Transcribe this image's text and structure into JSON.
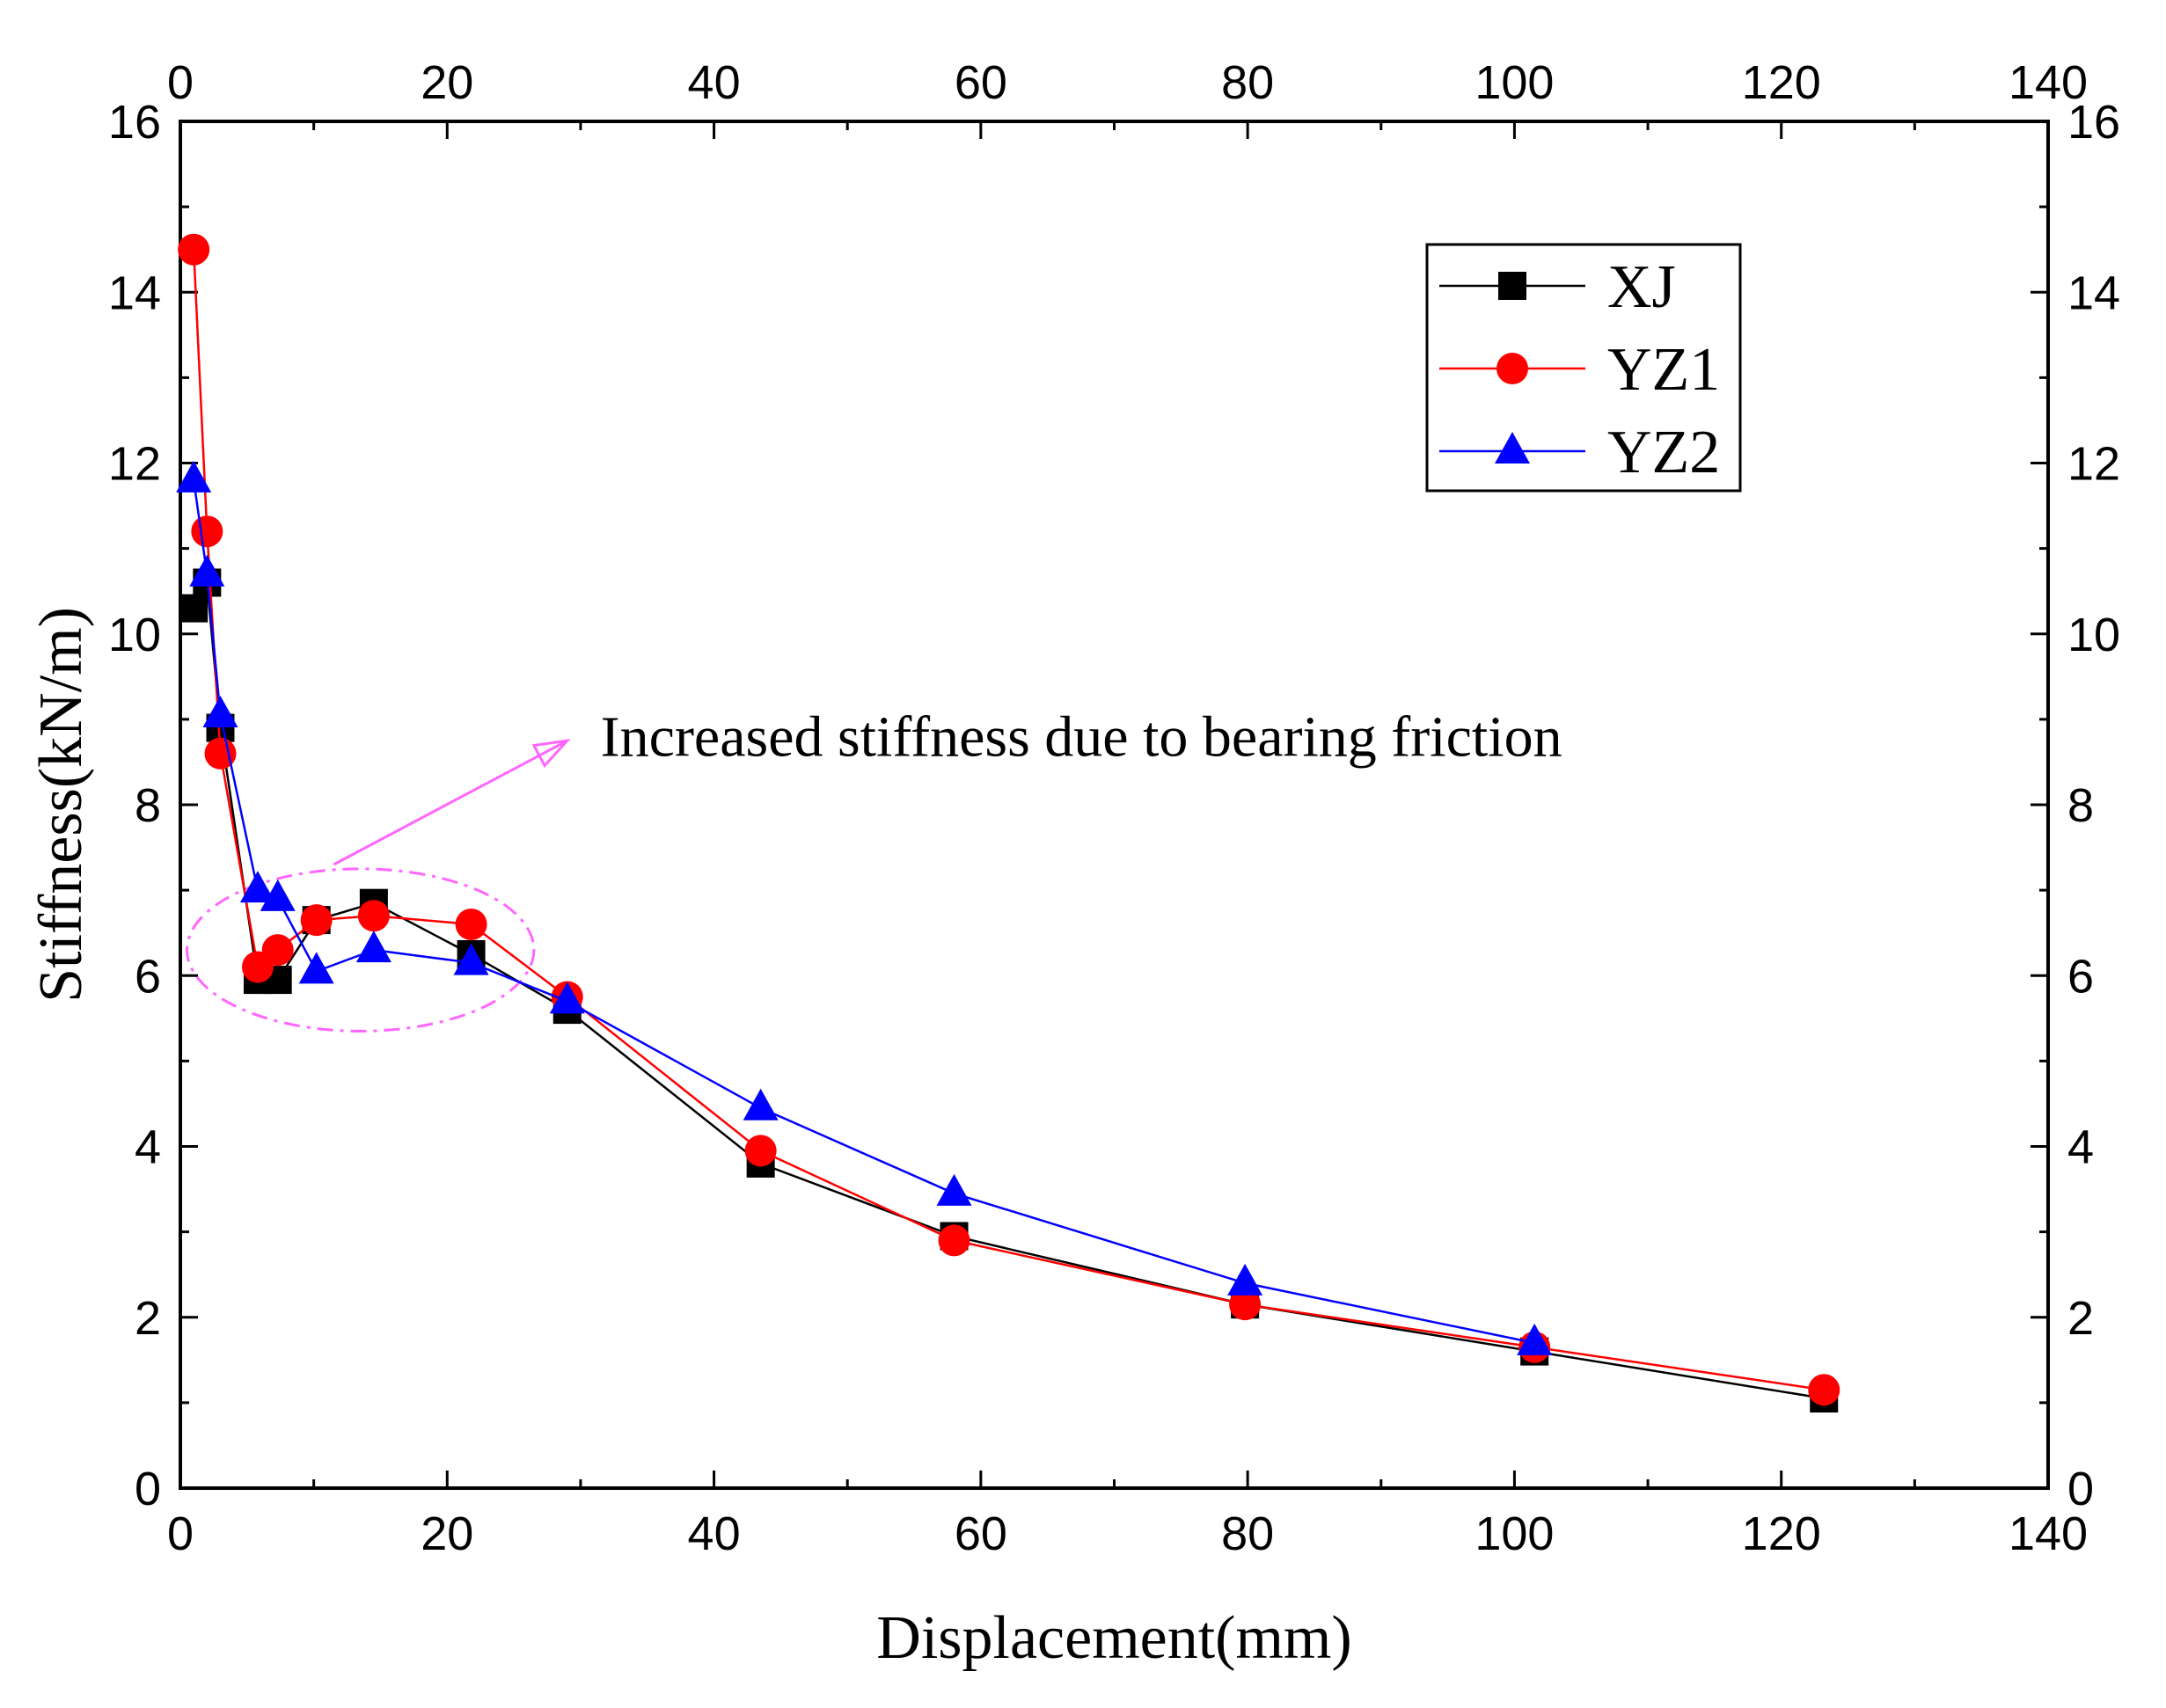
{
  "chart_data": {
    "type": "line",
    "title": "",
    "xlabel": "Displacement(mm)",
    "ylabel": "Stiffness(kN/m)",
    "xlim": [
      0,
      140
    ],
    "ylim": [
      0,
      16
    ],
    "x_ticks": [
      0,
      20,
      40,
      60,
      80,
      100,
      120,
      140
    ],
    "y_ticks": [
      0,
      2,
      4,
      6,
      8,
      10,
      12,
      14,
      16
    ],
    "grid": false,
    "legend_position": "top-right",
    "series": [
      {
        "name": "XJ",
        "color": "#000000",
        "marker": "square",
        "x": [
          1.0,
          2.0,
          3.0,
          5.8,
          7.3,
          10.2,
          14.5,
          21.8,
          29.0,
          43.5,
          58.0,
          79.8,
          101.5,
          123.2
        ],
        "y": [
          10.3,
          10.6,
          8.9,
          5.95,
          5.95,
          6.65,
          6.85,
          6.25,
          5.6,
          3.8,
          2.95,
          2.15,
          1.6,
          1.05
        ]
      },
      {
        "name": "YZ1",
        "color": "#ff0000",
        "marker": "circle",
        "x": [
          1.0,
          2.0,
          3.0,
          5.8,
          7.3,
          10.2,
          14.5,
          21.8,
          29.0,
          43.5,
          58.0,
          79.8,
          101.5,
          123.2
        ],
        "y": [
          14.5,
          11.2,
          8.6,
          6.1,
          6.3,
          6.65,
          6.7,
          6.6,
          5.75,
          3.95,
          2.9,
          2.15,
          1.65,
          1.15
        ]
      },
      {
        "name": "YZ2",
        "color": "#0000ff",
        "marker": "triangle",
        "x": [
          1.0,
          2.0,
          3.0,
          5.8,
          7.3,
          10.2,
          14.5,
          21.8,
          29.0,
          43.5,
          58.0,
          79.8,
          101.5
        ],
        "y": [
          11.8,
          10.7,
          9.05,
          7.0,
          6.9,
          6.05,
          6.3,
          6.15,
          5.7,
          4.45,
          3.45,
          2.4,
          1.7
        ]
      }
    ],
    "annotation": {
      "text": "Increased stiffness due to bearing friction",
      "color": "#ff66ff",
      "ellipse_center": [
        13.5,
        6.3
      ],
      "ellipse_radius": [
        13.0,
        0.95
      ],
      "arrow_from": [
        11.5,
        7.3
      ],
      "arrow_to": [
        29.0,
        8.75
      ],
      "text_anchor": [
        31.5,
        8.8
      ]
    }
  }
}
